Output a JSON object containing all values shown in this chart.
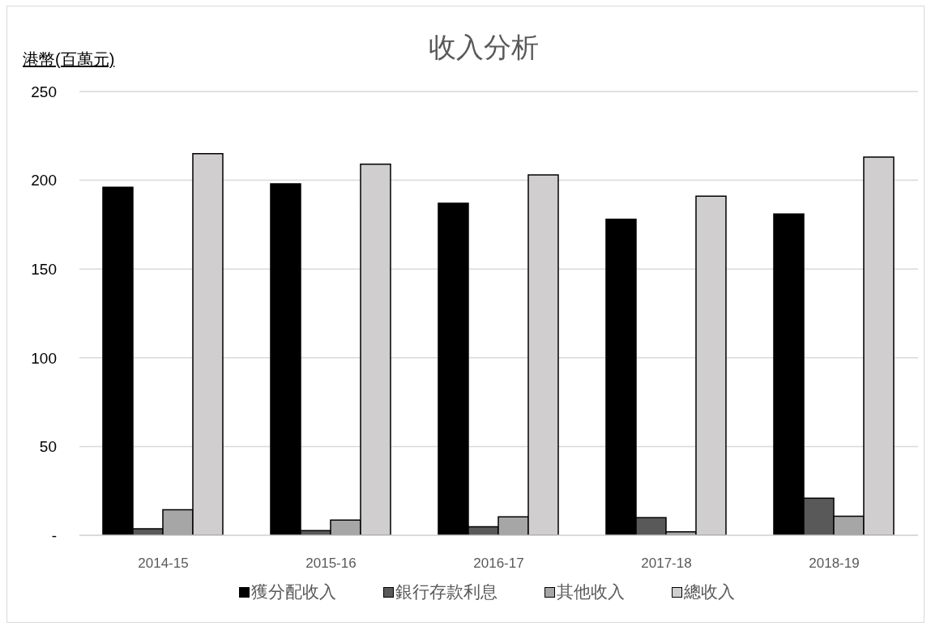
{
  "chart_data": {
    "type": "bar",
    "title": "收入分析",
    "ylabel": "港幣(百萬元)",
    "categories": [
      "2014-15",
      "2015-16",
      "2016-17",
      "2017-18",
      "2018-19"
    ],
    "series": [
      {
        "name": "獲分配收入",
        "color": "#000000",
        "values": [
          196,
          198,
          187,
          178,
          181
        ]
      },
      {
        "name": "銀行存款利息",
        "color": "#595959",
        "values": [
          3.6,
          2.6,
          4.8,
          9.9,
          20.9
        ]
      },
      {
        "name": "其他收入",
        "color": "#a6a6a6",
        "values": [
          14.4,
          8.5,
          10.4,
          1.9,
          10.7
        ]
      },
      {
        "name": "總收入",
        "color": "#d0cece",
        "values": [
          215,
          209,
          203,
          191,
          213
        ]
      }
    ],
    "ylim": [
      0,
      250
    ],
    "yticks": [
      {
        "value": 0,
        "label": "-"
      },
      50,
      100,
      150,
      200,
      250
    ],
    "grid": "y",
    "legend": "bottom"
  }
}
